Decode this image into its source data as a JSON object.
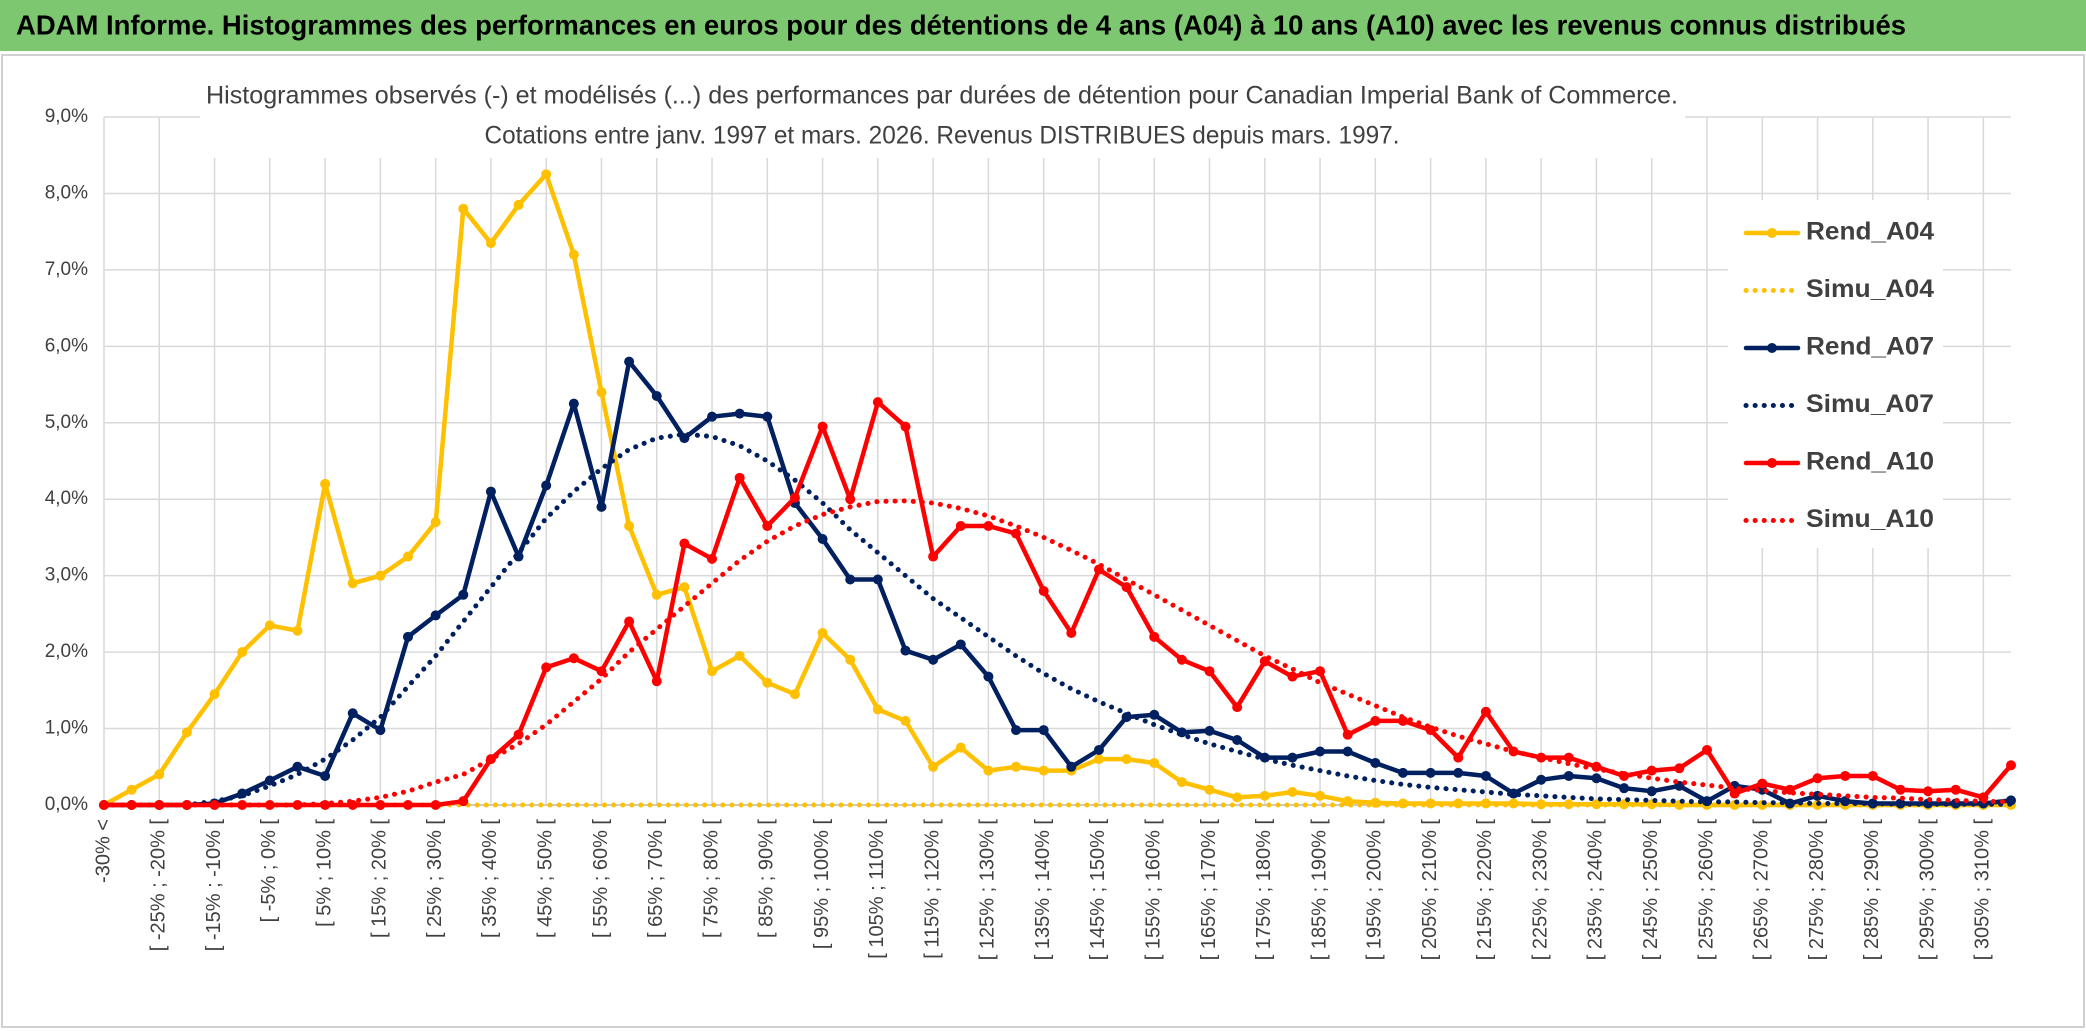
{
  "header": {
    "title": "ADAM Informe. Histogrammes des performances en euros pour des détentions de 4 ans (A04) à 10 ans (A10) avec les revenus connus distribués"
  },
  "chart_data": {
    "type": "line",
    "title": "Histogrammes observés (-) et modélisés (...) des performances par durées de détention pour Canadian Imperial Bank of Commerce.",
    "subtitle": "Cotations entre janv. 1997 et mars. 2026. Revenus DISTRIBUES depuis mars. 1997.",
    "categories": [
      "-30% <",
      null,
      "[ -25% ; -20% [",
      null,
      "[ -15% ; -10% [",
      null,
      "[ -5% ; 0% [",
      null,
      "[ 5% ; 10% [",
      null,
      "[ 15% ; 20% [",
      null,
      "[ 25% ; 30% [",
      null,
      "[ 35% ; 40% [",
      null,
      "[ 45% ; 50% [",
      null,
      "[ 55% ; 60% [",
      null,
      "[ 65% ; 70% [",
      null,
      "[ 75% ; 80% [",
      null,
      "[ 85% ; 90% [",
      null,
      "[ 95% ; 100% [",
      null,
      "[ 105% ; 110% [",
      null,
      "[ 115% ; 120% [",
      null,
      "[ 125% ; 130% [",
      null,
      "[ 135% ; 140% [",
      null,
      "[ 145% ; 150% [",
      null,
      "[ 155% ; 160% [",
      null,
      "[ 165% ; 170% [",
      null,
      "[ 175% ; 180% [",
      null,
      "[ 185% ; 190% [",
      null,
      "[ 195% ; 200% [",
      null,
      "[ 205% ; 210% [",
      null,
      "[ 215% ; 220% [",
      null,
      "[ 225% ; 230% [",
      null,
      "[ 235% ; 240% [",
      null,
      "[ 245% ; 250% [",
      null,
      "[ 255% ; 260% [",
      null,
      "[ 265% ; 270% [",
      null,
      "[ 275% ; 280% [",
      null,
      "[ 285% ; 290% [",
      null,
      "[ 295% ; 300% [",
      null,
      "[ 305% ; 310% [",
      null
    ],
    "series": [
      {
        "name": "Rend_A04",
        "color": "#FFC000",
        "line_style": "solid",
        "markers": true,
        "values": [
          0,
          0.2,
          0.4,
          0.95,
          1.45,
          2.0,
          2.35,
          2.28,
          4.2,
          2.9,
          3.0,
          3.25,
          3.7,
          7.8,
          7.35,
          7.85,
          8.25,
          7.2,
          5.4,
          3.65,
          2.75,
          2.85,
          1.75,
          1.95,
          1.6,
          1.45,
          2.25,
          1.9,
          1.25,
          1.1,
          0.5,
          0.75,
          0.45,
          0.5,
          0.45,
          0.45,
          0.6,
          0.6,
          0.55,
          0.3,
          0.2,
          0.1,
          0.12,
          0.17,
          0.12,
          0.05,
          0.03,
          0.02,
          0.02,
          0.02,
          0.02,
          0.02,
          0.01,
          0.01,
          0.01,
          0.01,
          0.01,
          0,
          0,
          0,
          0,
          0,
          0,
          0,
          0,
          0,
          0,
          0,
          0,
          0
        ]
      },
      {
        "name": "Simu_A04",
        "color": "#FFC000",
        "line_style": "dotted",
        "markers": false,
        "values": [
          0,
          0,
          0,
          0,
          0,
          0,
          0,
          0,
          0,
          0,
          0,
          0,
          0,
          0,
          0,
          0,
          0,
          0,
          0,
          0,
          0,
          0,
          0,
          0,
          0,
          0,
          0,
          0,
          0,
          0,
          0,
          0,
          0,
          0,
          0,
          0,
          0,
          0,
          0,
          0,
          0,
          0,
          0,
          0,
          0,
          0,
          0,
          0,
          0,
          0,
          0,
          0,
          0,
          0,
          0,
          0,
          0,
          0,
          0,
          0,
          0,
          0,
          0,
          0,
          0,
          0,
          0,
          0,
          0,
          0
        ]
      },
      {
        "name": "Rend_A07",
        "color": "#002060",
        "line_style": "solid",
        "markers": true,
        "values": [
          0,
          0,
          0,
          0,
          0.02,
          0.15,
          0.32,
          0.5,
          0.38,
          1.2,
          0.98,
          2.2,
          2.48,
          2.75,
          4.1,
          3.25,
          4.18,
          5.25,
          3.9,
          5.8,
          5.35,
          4.8,
          5.08,
          5.12,
          5.08,
          3.95,
          3.48,
          2.95,
          2.95,
          2.02,
          1.9,
          2.1,
          1.68,
          0.98,
          0.98,
          0.5,
          0.72,
          1.15,
          1.18,
          0.95,
          0.97,
          0.85,
          0.62,
          0.62,
          0.7,
          0.7,
          0.55,
          0.42,
          0.42,
          0.42,
          0.38,
          0.15,
          0.33,
          0.38,
          0.35,
          0.22,
          0.18,
          0.25,
          0.05,
          0.25,
          0.2,
          0.02,
          0.12,
          0.05,
          0.02,
          0.02,
          0.02,
          0.02,
          0.02,
          0.06
        ]
      },
      {
        "name": "Simu_A07",
        "color": "#002060",
        "line_style": "dotted",
        "markers": false,
        "values": [
          0,
          0,
          0,
          0,
          0.05,
          0.12,
          0.25,
          0.4,
          0.6,
          0.85,
          1.15,
          1.55,
          1.95,
          2.4,
          2.85,
          3.3,
          3.75,
          4.1,
          4.4,
          4.65,
          4.8,
          4.85,
          4.82,
          4.7,
          4.5,
          4.25,
          3.95,
          3.6,
          3.3,
          3.0,
          2.7,
          2.45,
          2.2,
          1.95,
          1.72,
          1.52,
          1.35,
          1.2,
          1.05,
          0.92,
          0.8,
          0.7,
          0.6,
          0.52,
          0.45,
          0.38,
          0.32,
          0.27,
          0.23,
          0.2,
          0.17,
          0.14,
          0.12,
          0.1,
          0.08,
          0.07,
          0.06,
          0.05,
          0.04,
          0.04,
          0.03,
          0.03,
          0.02,
          0.02,
          0.02,
          0.01,
          0.01,
          0.01,
          0.01,
          0.01
        ]
      },
      {
        "name": "Rend_A10",
        "color": "#FF0000",
        "line_style": "solid",
        "markers": true,
        "values": [
          0,
          0,
          0,
          0,
          0,
          0,
          0,
          0,
          0,
          0,
          0,
          0,
          0,
          0.05,
          0.6,
          0.92,
          1.8,
          1.92,
          1.75,
          2.4,
          1.62,
          3.42,
          3.22,
          4.28,
          3.65,
          4.02,
          4.95,
          4.0,
          5.27,
          4.95,
          3.25,
          3.65,
          3.65,
          3.55,
          2.8,
          2.25,
          3.08,
          2.85,
          2.2,
          1.9,
          1.75,
          1.28,
          1.88,
          1.68,
          1.75,
          0.92,
          1.1,
          1.1,
          0.98,
          0.62,
          1.22,
          0.7,
          0.62,
          0.62,
          0.5,
          0.38,
          0.45,
          0.48,
          0.72,
          0.15,
          0.28,
          0.2,
          0.35,
          0.38,
          0.38,
          0.2,
          0.18,
          0.2,
          0.1,
          0.52
        ]
      },
      {
        "name": "Simu_A10",
        "color": "#FF0000",
        "line_style": "dotted",
        "markers": false,
        "values": [
          0,
          0,
          0,
          0,
          0,
          0,
          0,
          0,
          0.02,
          0.05,
          0.1,
          0.18,
          0.3,
          0.4,
          0.6,
          0.8,
          1.05,
          1.35,
          1.65,
          2.0,
          2.3,
          2.6,
          2.9,
          3.2,
          3.45,
          3.65,
          3.8,
          3.9,
          3.97,
          3.98,
          3.95,
          3.88,
          3.78,
          3.65,
          3.5,
          3.33,
          3.15,
          2.95,
          2.75,
          2.55,
          2.35,
          2.15,
          1.95,
          1.78,
          1.6,
          1.45,
          1.3,
          1.15,
          1.02,
          0.9,
          0.8,
          0.7,
          0.62,
          0.54,
          0.47,
          0.41,
          0.35,
          0.3,
          0.26,
          0.22,
          0.19,
          0.16,
          0.14,
          0.12,
          0.1,
          0.09,
          0.07,
          0.06,
          0.05,
          0.04
        ]
      }
    ],
    "ylim": [
      0,
      9
    ],
    "yticks": [
      {
        "value": 0,
        "label": "0,0%"
      },
      {
        "value": 1,
        "label": "1,0%"
      },
      {
        "value": 2,
        "label": "2,0%"
      },
      {
        "value": 3,
        "label": "3,0%"
      },
      {
        "value": 4,
        "label": "4,0%"
      },
      {
        "value": 5,
        "label": "5,0%"
      },
      {
        "value": 6,
        "label": "6,0%"
      },
      {
        "value": 7,
        "label": "7,0%"
      },
      {
        "value": 8,
        "label": "8,0%"
      },
      {
        "value": 9,
        "label": "9,0%"
      }
    ],
    "grid": true,
    "legend": "right"
  }
}
